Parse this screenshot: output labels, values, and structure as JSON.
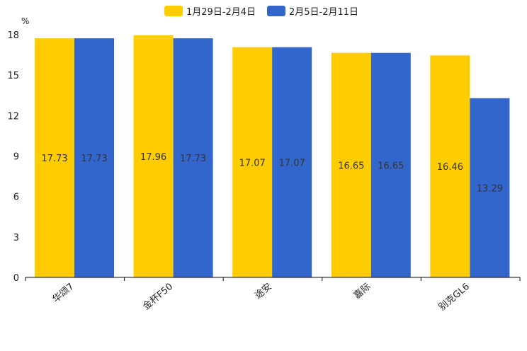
{
  "chart_data": {
    "type": "bar",
    "title": "",
    "ylabel": "%",
    "xlabel": "",
    "categories": [
      "华颂7",
      "金杯F50",
      "途安",
      "嘉际",
      "别克GL6"
    ],
    "series": [
      {
        "name": "1月29日-2月4日",
        "color": "#ffcc00",
        "values": [
          17.73,
          17.96,
          17.07,
          16.65,
          16.46
        ]
      },
      {
        "name": "2月5日-2月11日",
        "color": "#3366cc",
        "values": [
          17.73,
          17.73,
          17.07,
          16.65,
          13.29
        ]
      }
    ],
    "ylim": [
      0,
      18
    ],
    "yticks": [
      0,
      3,
      6,
      9,
      12,
      15,
      18
    ],
    "legend_position": "top-center",
    "grid": false
  }
}
